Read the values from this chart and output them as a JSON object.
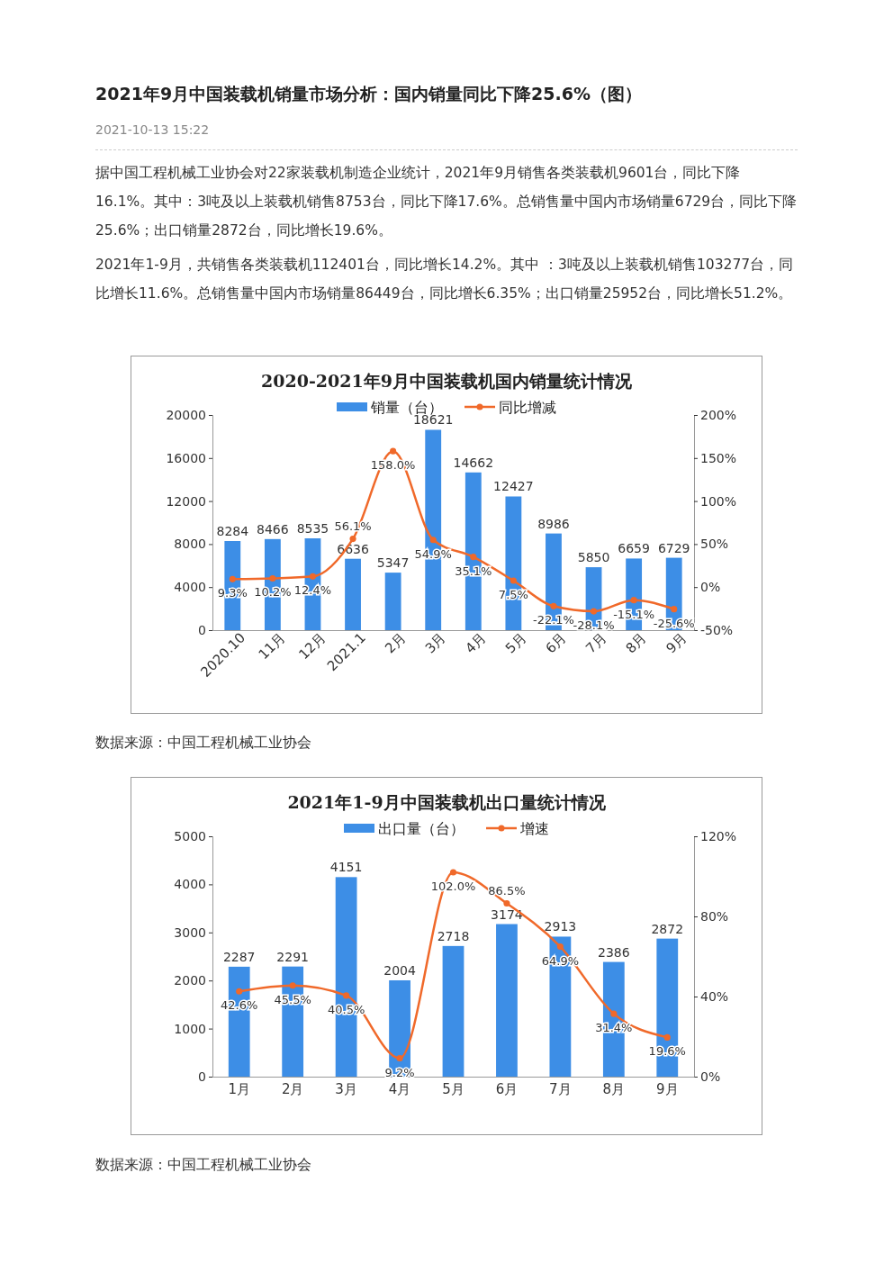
{
  "chart_data": [
    {
      "type": "bar",
      "title": "2020-2021年9月中国装载机国内销量统计情况",
      "categories": [
        "2020.10",
        "11月",
        "12月",
        "2021.1",
        "2月",
        "3月",
        "4月",
        "5月",
        "6月",
        "7月",
        "8月",
        "9月"
      ],
      "series": [
        {
          "name": "销量（台）",
          "axis": "y",
          "color": "#3d8ee6",
          "values": [
            8284,
            8466,
            8535,
            6636,
            5347,
            18621,
            14662,
            12427,
            8986,
            5850,
            6659,
            6729
          ],
          "value_labels": [
            "8284",
            "8466",
            "8535",
            "6636",
            "5347",
            "18621",
            "14662",
            "12427",
            "8986",
            "5850",
            "6659",
            "6729"
          ]
        },
        {
          "name": "同比增减",
          "type": "line",
          "axis": "y2",
          "color": "#f0692a",
          "values": [
            9.3,
            10.2,
            12.4,
            56.1,
            158.0,
            54.9,
            35.1,
            7.5,
            -22.1,
            -28.1,
            -15.1,
            -25.6
          ],
          "value_labels": [
            "9.3%",
            "10.2%",
            "12.4%",
            "56.1%",
            "158.0%",
            "54.9%",
            "35.1%",
            "7.5%",
            "-22.1%",
            "-28.1%",
            "-15.1%",
            "-25.6%"
          ]
        }
      ],
      "ylim": [
        0,
        20000
      ],
      "yticks": [
        0,
        4000,
        8000,
        12000,
        16000,
        20000
      ],
      "y2lim": [
        -50,
        200
      ],
      "y2ticks": [
        {
          "value": -50,
          "label": "-50%"
        },
        {
          "value": 0,
          "label": "0%"
        },
        {
          "value": 50,
          "label": "50%"
        },
        {
          "value": 100,
          "label": "100%"
        },
        {
          "value": 150,
          "label": "150%"
        },
        {
          "value": 200,
          "label": "200%"
        }
      ],
      "legend": "top",
      "marker": "circle",
      "line_style": "solid",
      "annotations": [
        "2021年9月中国装载机销量市场分析：国内销量同比下降25.6%（图）",
        "2021-10-13 15:22",
        "据中国工程机械工业协会对22家装载机制造企业统计，2021年9月销售各类装载机9601台，同比下降16.1%。其中：3吨及以上装载机销售8753台，同比下降17.6%。总销售量中国内市场销量6729台，同比下降25.6%；出口销量2872台，同比增长19.6%。",
        "2021年1-9月，共销售各类装载机112401台，同比增长14.2%。其中 ：3吨及以上装载机销售103277台，同比增长11.6%。总销售量中国内市场销量86449台，同比增长6.35%；出口销量25952台，同比增长51.2%。",
        "数据来源：中国工程机械工业协会"
      ]
    },
    {
      "type": "bar",
      "title": "2021年1-9月中国装载机出口量统计情况",
      "categories": [
        "1月",
        "2月",
        "3月",
        "4月",
        "5月",
        "6月",
        "7月",
        "8月",
        "9月"
      ],
      "series": [
        {
          "name": "出口量（台）",
          "axis": "y",
          "color": "#3d8ee6",
          "values": [
            2287,
            2291,
            4151,
            2004,
            2718,
            3174,
            2913,
            2386,
            2872
          ],
          "value_labels": [
            "2287",
            "2291",
            "4151",
            "2004",
            "2718",
            "3174",
            "2913",
            "2386",
            "2872"
          ]
        },
        {
          "name": "增速",
          "type": "line",
          "axis": "y2",
          "color": "#f0692a",
          "values": [
            42.6,
            45.5,
            40.5,
            9.2,
            102.0,
            86.5,
            64.9,
            31.4,
            19.6
          ],
          "value_labels": [
            "42.6%",
            "45.5%",
            "40.5%",
            "9.2%",
            "102.0%",
            "86.5%",
            "64.9%",
            "31.4%",
            "19.6%"
          ]
        }
      ],
      "ylim": [
        0,
        5000
      ],
      "yticks": [
        0,
        1000,
        2000,
        3000,
        4000,
        5000
      ],
      "y2lim": [
        0,
        120
      ],
      "y2ticks": [
        {
          "value": 0,
          "label": "0%"
        },
        {
          "value": 40,
          "label": "40%"
        },
        {
          "value": 80,
          "label": "80%"
        },
        {
          "value": 120,
          "label": "120%"
        }
      ],
      "legend": "top",
      "marker": "circle",
      "line_style": "solid",
      "annotations": [
        "数据来源：中国工程机械工业协会"
      ]
    }
  ]
}
